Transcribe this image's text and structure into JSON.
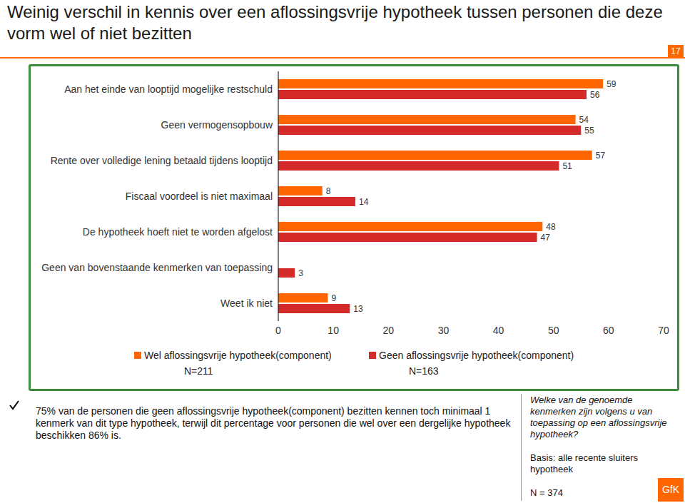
{
  "chart_data": {
    "type": "bar",
    "orientation": "horizontal",
    "title": "Weinig verschil in kennis over een aflossingsvrije hypotheek tussen personen die deze vorm wel of niet bezitten",
    "categories": [
      "Aan het einde van looptijd mogelijke restschuld",
      "Geen vermogensopbouw",
      "Rente over volledige lening betaald tijdens looptijd",
      "Fiscaal voordeel is niet maximaal",
      "De hypotheek hoeft niet te worden afgelost",
      "Geen van bovenstaande kenmerken van toepassing",
      "Weet ik niet"
    ],
    "series": [
      {
        "name": "Wel aflossingsvrije hypotheek(component)",
        "color": "#ff6600",
        "values": [
          59,
          54,
          57,
          8,
          48,
          0,
          9
        ]
      },
      {
        "name": "Geen aflossingsvrije hypotheek(component)",
        "color": "#d42a2a",
        "values": [
          56,
          55,
          51,
          14,
          47,
          3,
          13
        ]
      }
    ],
    "xlim": [
      0,
      70
    ],
    "xticks": [
      0,
      10,
      20,
      30,
      40,
      50,
      60,
      70
    ],
    "grid": false,
    "data_labels": true,
    "annotations": {
      "page_number": "17",
      "series_n": [
        "N=211",
        "N=163"
      ],
      "note": "75% van de personen die geen aflossingsvrije hypotheek(component) bezitten kennen toch minimaal 1 kenmerk van dit type hypotheek, terwijl dit percentage voor personen die wel over een dergelijke hypotheek beschikken 86% is.",
      "question": "Welke van de genoemde kenmerken zijn volgens u van toepassing op een aflossingsvrije hypotheek?",
      "base": "Basis: alle recente sluiters hypotheek",
      "n_total": "N = 374",
      "logo": "GfK"
    }
  }
}
